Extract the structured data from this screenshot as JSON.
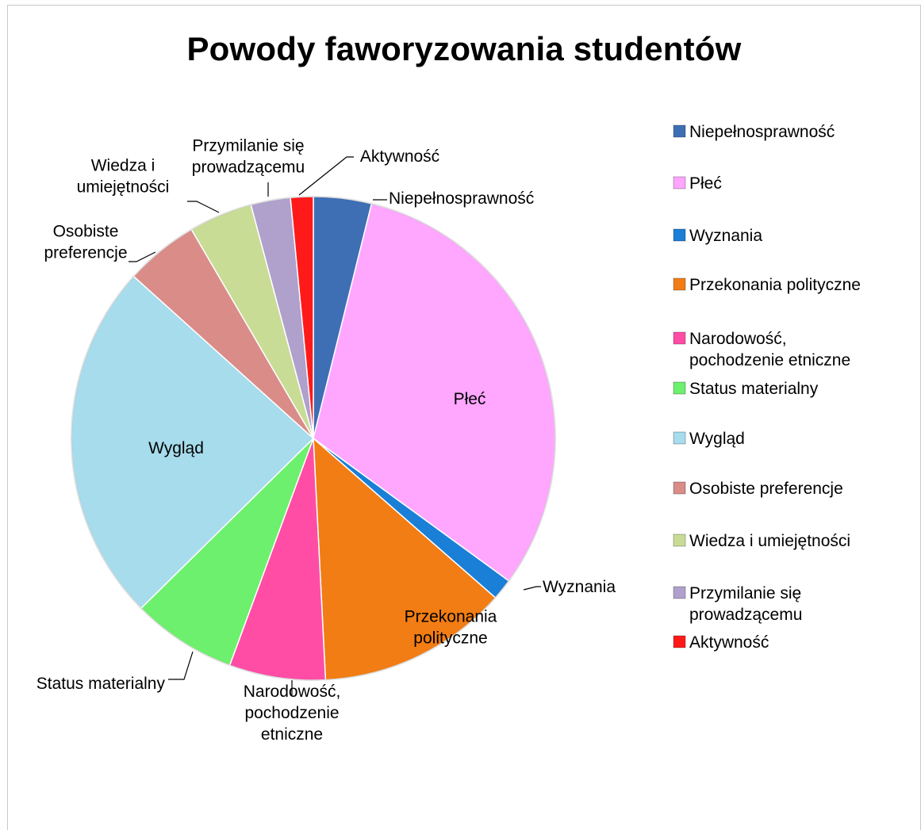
{
  "chart_data": {
    "type": "pie",
    "title": "Powody faworyzowania studentów",
    "legend_position": "right",
    "slices": [
      {
        "label": "Niepełnosprawność",
        "value": 4.1,
        "color": "#3e6fb4",
        "legend_lines": [
          "Niepełnosprawność"
        ]
      },
      {
        "label": "Płeć",
        "value": 33.0,
        "color": "#ffa6ff",
        "legend_lines": [
          "Płeć"
        ]
      },
      {
        "label": "Wyznania",
        "value": 1.5,
        "color": "#1a7fd6",
        "legend_lines": [
          "Wyznania"
        ]
      },
      {
        "label": "Przekonania polityczne",
        "value": 13.5,
        "color": "#f27d14",
        "legend_lines": [
          "Przekonania polityczne"
        ]
      },
      {
        "label": "Narodowość, pochodzenie etniczne",
        "value": 6.8,
        "color": "#ff4da6",
        "legend_lines": [
          "Narodowość,",
          "pochodzenie etniczne"
        ]
      },
      {
        "label": "Status materialny",
        "value": 7.4,
        "color": "#6df06d",
        "legend_lines": [
          "Status materialny"
        ]
      },
      {
        "label": "Wygląd",
        "value": 25.5,
        "color": "#a6dcec",
        "legend_lines": [
          "Wygląd"
        ]
      },
      {
        "label": "Osobiste preferencje",
        "value": 5.2,
        "color": "#d98c88",
        "legend_lines": [
          "Osobiste preferencje"
        ]
      },
      {
        "label": "Wiedza i umiejętności",
        "value": 4.5,
        "color": "#c8dc96",
        "legend_lines": [
          "Wiedza i umiejętności"
        ]
      },
      {
        "label": "Przymilanie się prowadzącemu",
        "value": 2.8,
        "color": "#b0a0cc",
        "legend_lines": [
          "Przymilanie się",
          "prowadzącemu"
        ]
      },
      {
        "label": "Aktywność",
        "value": 1.6,
        "color": "#ff1a1a",
        "legend_lines": [
          "Aktywność"
        ]
      }
    ],
    "data_labels": [
      {
        "slice": 0,
        "lines": [
          "Niepełnosprawność"
        ]
      },
      {
        "slice": 1,
        "lines": [
          "Płeć"
        ]
      },
      {
        "slice": 2,
        "lines": [
          "Wyznania"
        ]
      },
      {
        "slice": 3,
        "lines": [
          "Przekonania",
          "polityczne"
        ]
      },
      {
        "slice": 4,
        "lines": [
          "Narodowość,",
          "pochodzenie",
          "etniczne"
        ]
      },
      {
        "slice": 5,
        "lines": [
          "Status materialny"
        ]
      },
      {
        "slice": 6,
        "lines": [
          "Wygląd"
        ]
      },
      {
        "slice": 7,
        "lines": [
          "Osobiste",
          "preferencje"
        ]
      },
      {
        "slice": 8,
        "lines": [
          "Wiedza i",
          "umiejętności"
        ]
      },
      {
        "slice": 9,
        "lines": [
          "Przymilanie się",
          "prowadzącemu"
        ]
      },
      {
        "slice": 10,
        "lines": [
          "Aktywność"
        ]
      }
    ]
  }
}
